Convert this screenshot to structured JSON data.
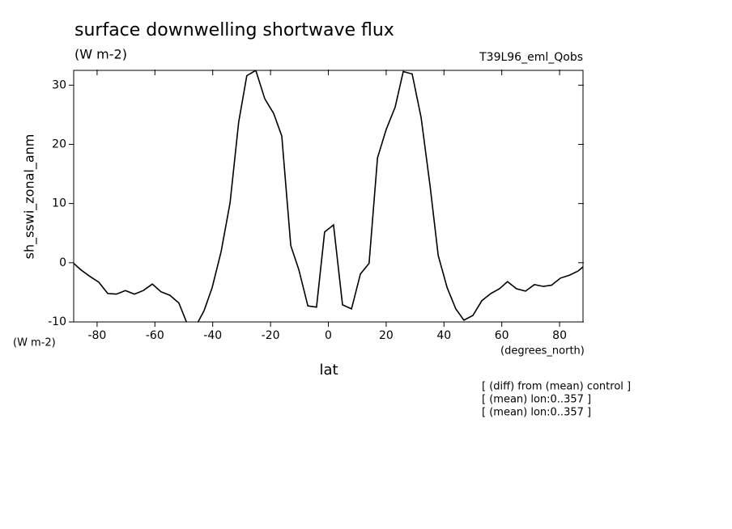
{
  "chart_data": {
    "type": "line",
    "title": "surface downwelling shortwave flux",
    "subtitle": "(W m-2)",
    "run_label": "T39L96_eml_Qobs",
    "y_label": "sh_sswi_zonal_anm",
    "y_units": "(W m-2)",
    "x_label": "lat",
    "x_units": "(degrees_north)",
    "notes": [
      "[ (diff) from (mean) control ]",
      "[ (mean) lon:0..357 ]",
      "[ (mean) lon:0..357 ]"
    ],
    "xlim": [
      -88.1,
      88.1
    ],
    "ylim": [
      -10,
      32.5
    ],
    "xticks": [
      -80,
      -60,
      -40,
      -20,
      0,
      20,
      40,
      60,
      80
    ],
    "yticks": [
      -10,
      0,
      10,
      20,
      30
    ],
    "series": [
      {
        "color": "#000000",
        "x": [
          -88.1,
          -85.6,
          -82.5,
          -79.4,
          -76.3,
          -73.3,
          -70.2,
          -67.1,
          -64.0,
          -60.9,
          -57.9,
          -54.8,
          -51.7,
          -48.6,
          -45.5,
          -43.0,
          -40.2,
          -37.1,
          -34.0,
          -31.0,
          -28.2,
          -25.1,
          -22.0,
          -18.9,
          -16.1,
          -13.0,
          -10.2,
          -7.1,
          -4.1,
          -1.3,
          1.8,
          4.9,
          8.0,
          11.1,
          14.1,
          17.0,
          20.0,
          23.1,
          25.9,
          29.0,
          32.1,
          35.2,
          38.0,
          41.1,
          44.1,
          46.9,
          50.0,
          53.1,
          56.2,
          59.2,
          62.0,
          65.1,
          68.2,
          71.3,
          74.4,
          77.2,
          80.3,
          83.4,
          86.4,
          88.1
        ],
        "values": [
          -0.1,
          -1.2,
          -2.3,
          -3.3,
          -5.2,
          -5.3,
          -4.7,
          -5.3,
          -4.7,
          -3.6,
          -4.9,
          -5.5,
          -6.8,
          -10.6,
          -10.4,
          -8.1,
          -4.2,
          1.9,
          10.1,
          23.8,
          31.6,
          32.5,
          27.7,
          25.2,
          21.4,
          2.9,
          -1.2,
          -7.3,
          -7.5,
          5.2,
          6.4,
          -7.1,
          -7.8,
          -1.9,
          -0.1,
          17.7,
          22.5,
          26.3,
          32.3,
          31.9,
          24.5,
          12.9,
          1.2,
          -4.2,
          -7.8,
          -9.7,
          -8.9,
          -6.4,
          -5.2,
          -4.4,
          -3.2,
          -4.4,
          -4.8,
          -3.7,
          -4.0,
          -3.8,
          -2.6,
          -2.1,
          -1.4,
          -0.7
        ]
      }
    ]
  }
}
